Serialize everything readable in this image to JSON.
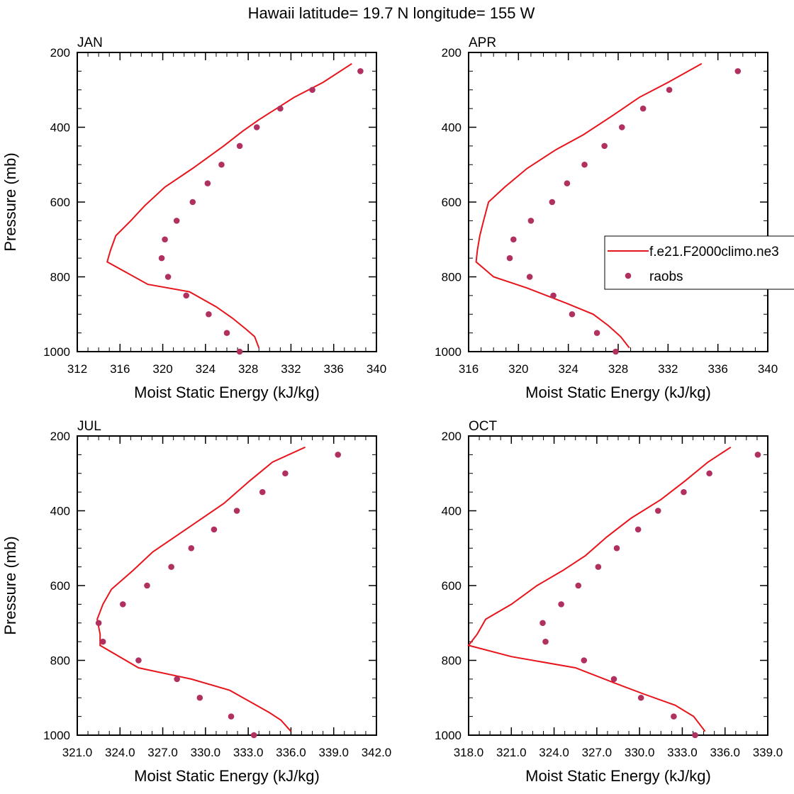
{
  "figure_title": "Hawaii  latitude= 19.7 N longitude= 155 W",
  "colors": {
    "model_line": "#e8141b",
    "obs_marker": "#b03060",
    "axis": "#000000"
  },
  "legend": {
    "model_label": "f.e21.F2000climo.ne3",
    "obs_label": "raobs"
  },
  "chart_data": [
    {
      "type": "line",
      "title": "JAN",
      "xlabel": "Moist Static Energy (kJ/kg)",
      "ylabel": "Pressure (mb)",
      "xlim": [
        312,
        340
      ],
      "ylim": [
        1000,
        200
      ],
      "xticks": [
        312,
        316,
        320,
        324,
        328,
        332,
        336,
        340
      ],
      "xtick_labels": [
        "312",
        "316",
        "320",
        "324",
        "328",
        "332",
        "336",
        "340"
      ],
      "yticks": [
        200,
        400,
        600,
        800,
        1000
      ],
      "ytick_labels": [
        "200",
        "400",
        "600",
        "800",
        "1000"
      ],
      "series": [
        {
          "name": "f.e21.F2000climo.ne3",
          "kind": "line",
          "points": [
            [
              337.7,
              230
            ],
            [
              335.0,
              280
            ],
            [
              332.3,
              320
            ],
            [
              329.0,
              380
            ],
            [
              327.5,
              410
            ],
            [
              325.7,
              450
            ],
            [
              322.8,
              510
            ],
            [
              320.2,
              560
            ],
            [
              318.3,
              610
            ],
            [
              317.0,
              650
            ],
            [
              315.6,
              690
            ],
            [
              315.1,
              730
            ],
            [
              314.8,
              760
            ],
            [
              318.6,
              820
            ],
            [
              322.5,
              840
            ],
            [
              325.0,
              880
            ],
            [
              326.5,
              910
            ],
            [
              327.8,
              940
            ],
            [
              328.6,
              960
            ],
            [
              329.0,
              990
            ]
          ]
        },
        {
          "name": "raobs",
          "kind": "scatter",
          "points": [
            [
              338.5,
              250
            ],
            [
              334.0,
              300
            ],
            [
              331.0,
              350
            ],
            [
              328.8,
              400
            ],
            [
              327.2,
              450
            ],
            [
              325.5,
              500
            ],
            [
              324.2,
              550
            ],
            [
              322.8,
              600
            ],
            [
              321.3,
              650
            ],
            [
              320.2,
              700
            ],
            [
              319.9,
              750
            ],
            [
              320.5,
              800
            ],
            [
              322.2,
              850
            ],
            [
              324.3,
              900
            ],
            [
              326.0,
              950
            ],
            [
              327.2,
              1000
            ]
          ]
        }
      ]
    },
    {
      "type": "line",
      "title": "APR",
      "xlabel": "Moist Static Energy (kJ/kg)",
      "ylabel": "",
      "xlim": [
        316,
        340
      ],
      "ylim": [
        1000,
        200
      ],
      "xticks": [
        316,
        320,
        324,
        328,
        332,
        336,
        340
      ],
      "xtick_labels": [
        "316",
        "320",
        "324",
        "328",
        "332",
        "336",
        "340"
      ],
      "yticks": [
        200,
        400,
        600,
        800,
        1000
      ],
      "ytick_labels": [
        "200",
        "400",
        "600",
        "800",
        "1000"
      ],
      "legend_position": "right",
      "series": [
        {
          "name": "f.e21.F2000climo.ne3",
          "kind": "line",
          "points": [
            [
              334.7,
              230
            ],
            [
              332.0,
              280
            ],
            [
              329.7,
              320
            ],
            [
              327.5,
              370
            ],
            [
              325.2,
              420
            ],
            [
              323.0,
              460
            ],
            [
              320.7,
              510
            ],
            [
              318.9,
              560
            ],
            [
              317.6,
              600
            ],
            [
              317.2,
              650
            ],
            [
              316.9,
              690
            ],
            [
              316.7,
              730
            ],
            [
              316.6,
              760
            ],
            [
              318.0,
              800
            ],
            [
              320.7,
              830
            ],
            [
              323.8,
              870
            ],
            [
              326.0,
              900
            ],
            [
              327.2,
              930
            ],
            [
              328.2,
              960
            ],
            [
              328.9,
              990
            ]
          ]
        },
        {
          "name": "raobs",
          "kind": "scatter",
          "points": [
            [
              337.6,
              250
            ],
            [
              332.1,
              300
            ],
            [
              330.0,
              350
            ],
            [
              328.3,
              400
            ],
            [
              326.9,
              450
            ],
            [
              325.3,
              500
            ],
            [
              323.9,
              550
            ],
            [
              322.7,
              600
            ],
            [
              321.0,
              650
            ],
            [
              319.6,
              700
            ],
            [
              319.3,
              750
            ],
            [
              320.9,
              800
            ],
            [
              322.8,
              850
            ],
            [
              324.3,
              900
            ],
            [
              326.3,
              950
            ],
            [
              327.8,
              1000
            ]
          ]
        }
      ]
    },
    {
      "type": "line",
      "title": "JUL",
      "xlabel": "Moist Static Energy (kJ/kg)",
      "ylabel": "Pressure (mb)",
      "xlim": [
        321,
        342
      ],
      "ylim": [
        1000,
        200
      ],
      "xticks": [
        321,
        324,
        327,
        330,
        333,
        336,
        339,
        342
      ],
      "xtick_labels": [
        "321.0",
        "324.0",
        "327.0",
        "330.0",
        "333.0",
        "336.0",
        "339.0",
        "342.0"
      ],
      "yticks": [
        200,
        400,
        600,
        800,
        1000
      ],
      "ytick_labels": [
        "200",
        "400",
        "600",
        "800",
        "1000"
      ],
      "series": [
        {
          "name": "f.e21.F2000climo.ne3",
          "kind": "line",
          "points": [
            [
              337.0,
              230
            ],
            [
              334.7,
              270
            ],
            [
              333.1,
              320
            ],
            [
              331.3,
              380
            ],
            [
              329.0,
              440
            ],
            [
              326.3,
              510
            ],
            [
              324.9,
              560
            ],
            [
              323.4,
              610
            ],
            [
              322.8,
              650
            ],
            [
              322.4,
              690
            ],
            [
              322.6,
              730
            ],
            [
              322.6,
              760
            ],
            [
              325.3,
              820
            ],
            [
              329.0,
              850
            ],
            [
              331.7,
              880
            ],
            [
              333.1,
              910
            ],
            [
              334.5,
              940
            ],
            [
              335.3,
              960
            ],
            [
              336.0,
              990
            ]
          ]
        },
        {
          "name": "raobs",
          "kind": "scatter",
          "points": [
            [
              339.3,
              250
            ],
            [
              335.6,
              300
            ],
            [
              334.0,
              350
            ],
            [
              332.2,
              400
            ],
            [
              330.6,
              450
            ],
            [
              329.0,
              500
            ],
            [
              327.6,
              550
            ],
            [
              325.9,
              600
            ],
            [
              324.2,
              650
            ],
            [
              322.5,
              700
            ],
            [
              322.8,
              750
            ],
            [
              325.3,
              800
            ],
            [
              328.0,
              850
            ],
            [
              329.6,
              900
            ],
            [
              331.8,
              950
            ],
            [
              333.4,
              1000
            ]
          ]
        }
      ]
    },
    {
      "type": "line",
      "title": "OCT",
      "xlabel": "Moist Static Energy (kJ/kg)",
      "ylabel": "",
      "xlim": [
        318,
        339
      ],
      "ylim": [
        1000,
        200
      ],
      "xticks": [
        318,
        321,
        324,
        327,
        330,
        333,
        336,
        339
      ],
      "xtick_labels": [
        "318.0",
        "321.0",
        "324.0",
        "327.0",
        "330.0",
        "333.0",
        "336.0",
        "339.0"
      ],
      "yticks": [
        200,
        400,
        600,
        800,
        1000
      ],
      "ytick_labels": [
        "200",
        "400",
        "600",
        "800",
        "1000"
      ],
      "series": [
        {
          "name": "f.e21.F2000climo.ne3",
          "kind": "line",
          "points": [
            [
              336.4,
              230
            ],
            [
              334.8,
              270
            ],
            [
              333.2,
              320
            ],
            [
              331.5,
              370
            ],
            [
              329.4,
              420
            ],
            [
              327.7,
              470
            ],
            [
              326.2,
              520
            ],
            [
              324.6,
              560
            ],
            [
              322.8,
              600
            ],
            [
              321.0,
              650
            ],
            [
              319.2,
              690
            ],
            [
              318.6,
              730
            ],
            [
              318.0,
              760
            ],
            [
              321.0,
              790
            ],
            [
              325.5,
              820
            ],
            [
              328.2,
              860
            ],
            [
              330.3,
              890
            ],
            [
              332.5,
              920
            ],
            [
              333.8,
              950
            ],
            [
              334.6,
              990
            ]
          ]
        },
        {
          "name": "raobs",
          "kind": "scatter",
          "points": [
            [
              338.3,
              250
            ],
            [
              334.9,
              300
            ],
            [
              333.1,
              350
            ],
            [
              331.3,
              400
            ],
            [
              329.9,
              450
            ],
            [
              328.4,
              500
            ],
            [
              327.1,
              550
            ],
            [
              325.7,
              600
            ],
            [
              324.5,
              650
            ],
            [
              323.2,
              700
            ],
            [
              323.4,
              750
            ],
            [
              326.1,
              800
            ],
            [
              328.2,
              850
            ],
            [
              330.1,
              900
            ],
            [
              332.4,
              950
            ],
            [
              333.9,
              1000
            ]
          ]
        }
      ]
    }
  ]
}
